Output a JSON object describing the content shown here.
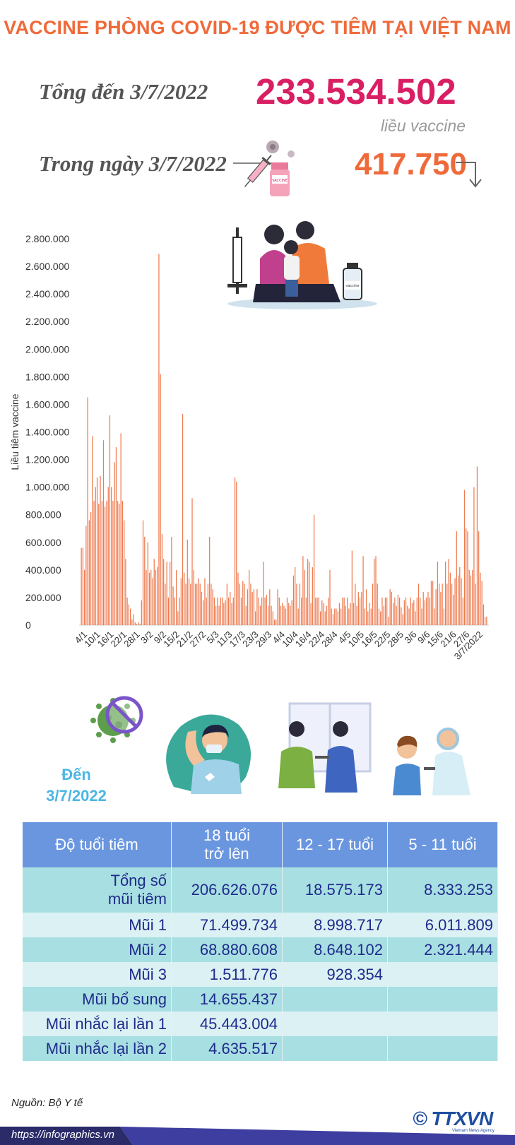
{
  "header": {
    "title": "VACCINE PHÒNG COVID-19 ĐƯỢC TIÊM TẠI VIỆT NAM",
    "total_label": "Tổng đến 3/7/2022",
    "total_value": "233.534.502",
    "total_unit": "liều vaccine",
    "day_label": "Trong ngày 3/7/2022",
    "day_value": "417.750"
  },
  "chart_data": {
    "type": "bar",
    "ylabel": "Liều tiêm vaccine",
    "ylim": [
      0,
      2800000
    ],
    "yticks": [
      "2.800.000",
      "2.600.000",
      "2.400.000",
      "2.200.000",
      "2.000.000",
      "1.800.000",
      "1.600.000",
      "1.400.000",
      "1.200.000",
      "1.000.000",
      "800.000",
      "600.000",
      "400.000",
      "200.000",
      "0"
    ],
    "xticks": [
      "4/1",
      "10/1",
      "16/1",
      "22/1",
      "28/1",
      "3/2",
      "9/2",
      "15/2",
      "21/2",
      "27/2",
      "5/3",
      "11/3",
      "17/3",
      "23/3",
      "29/3",
      "4/4",
      "10/4",
      "16/4",
      "22/4",
      "28/4",
      "4/5",
      "10/5",
      "16/5",
      "22/5",
      "28/5",
      "3/6",
      "9/6",
      "15/6",
      "21/6",
      "27/6",
      "3/7/2022"
    ],
    "color": "#ef7a4e",
    "values": [
      560000,
      560000,
      400000,
      720000,
      1650000,
      760000,
      820000,
      1370000,
      900000,
      1000000,
      1070000,
      880000,
      1080000,
      900000,
      1340000,
      860000,
      900000,
      1000000,
      1520000,
      1000000,
      900000,
      1180000,
      1290000,
      900000,
      880000,
      1390000,
      900000,
      760000,
      480000,
      200000,
      150000,
      120000,
      40000,
      80000,
      20000,
      10000,
      20000,
      10000,
      180000,
      760000,
      640000,
      400000,
      600000,
      380000,
      400000,
      340000,
      480000,
      400000,
      420000,
      2690000,
      1820000,
      660000,
      480000,
      300000,
      460000,
      200000,
      460000,
      640000,
      280000,
      200000,
      400000,
      100000,
      200000,
      340000,
      1530000,
      380000,
      300000,
      620000,
      340000,
      300000,
      920000,
      400000,
      300000,
      300000,
      340000,
      300000,
      240000,
      180000,
      340000,
      200000,
      300000,
      640000,
      300000,
      260000,
      200000,
      140000,
      200000,
      140000,
      200000,
      200000,
      160000,
      180000,
      300000,
      200000,
      240000,
      160000,
      200000,
      1070000,
      1040000,
      380000,
      300000,
      200000,
      320000,
      300000,
      140000,
      260000,
      400000,
      300000,
      240000,
      260000,
      100000,
      260000,
      200000,
      140000,
      200000,
      460000,
      200000,
      220000,
      140000,
      260000,
      140000,
      100000,
      40000,
      40000,
      260000,
      200000,
      140000,
      160000,
      140000,
      120000,
      200000,
      160000,
      140000,
      180000,
      360000,
      420000,
      300000,
      120000,
      300000,
      200000,
      500000,
      400000,
      200000,
      480000,
      460000,
      160000,
      420000,
      800000,
      200000,
      200000,
      200000,
      100000,
      180000,
      160000,
      100000,
      140000,
      200000,
      400000,
      120000,
      80000,
      120000,
      120000,
      100000,
      160000,
      120000,
      200000,
      200000,
      140000,
      200000,
      120000,
      160000,
      540000,
      160000,
      300000,
      140000,
      240000,
      200000,
      240000,
      500000,
      120000,
      260000,
      100000,
      160000,
      120000,
      300000,
      480000,
      500000,
      300000,
      120000,
      100000,
      200000,
      140000,
      200000,
      200000,
      60000,
      260000,
      240000,
      160000,
      200000,
      140000,
      220000,
      200000,
      130000,
      80000,
      180000,
      200000,
      140000,
      120000,
      200000,
      160000,
      180000,
      100000,
      200000,
      300000,
      200000,
      120000,
      240000,
      180000,
      200000,
      240000,
      200000,
      320000,
      320000,
      120000,
      260000,
      460000,
      300000,
      240000,
      300000,
      120000,
      460000,
      300000,
      480000,
      380000,
      300000,
      220000,
      340000,
      680000,
      360000,
      420000,
      340000,
      200000,
      980000,
      700000,
      680000,
      400000,
      360000,
      400000,
      1000000,
      300000,
      1150000,
      680000,
      380000,
      320000,
      150000,
      60000,
      60000
    ]
  },
  "table": {
    "den_label": "Đến",
    "den_date": "3/7/2022",
    "headers": [
      "Độ tuổi tiêm",
      "18 tuổi\ntrở lên",
      "12 - 17 tuổi",
      "5 - 11 tuổi"
    ],
    "rows": [
      {
        "label": "Tổng số\nmũi tiêm",
        "c1": "206.626.076",
        "c2": "18.575.173",
        "c3": "8.333.253"
      },
      {
        "label": "Mũi 1",
        "c1": "71.499.734",
        "c2": "8.998.717",
        "c3": "6.011.809"
      },
      {
        "label": "Mũi 2",
        "c1": "68.880.608",
        "c2": "8.648.102",
        "c3": "2.321.444"
      },
      {
        "label": "Mũi 3",
        "c1": "1.511.776",
        "c2": "928.354",
        "c3": ""
      },
      {
        "label": "Mũi bổ sung",
        "c1": "14.655.437",
        "c2": "",
        "c3": ""
      },
      {
        "label": "Mũi nhắc lại lần 1",
        "c1": "45.443.004",
        "c2": "",
        "c3": ""
      },
      {
        "label": "Mũi nhắc lại lần 2",
        "c1": "4.635.517",
        "c2": "",
        "c3": ""
      }
    ]
  },
  "footer": {
    "source": "Nguồn: Bộ Y tế",
    "url": "https://infographics.vn",
    "logo_text": "© TTXVN",
    "logo_sub": "Vietnam News Agency"
  }
}
